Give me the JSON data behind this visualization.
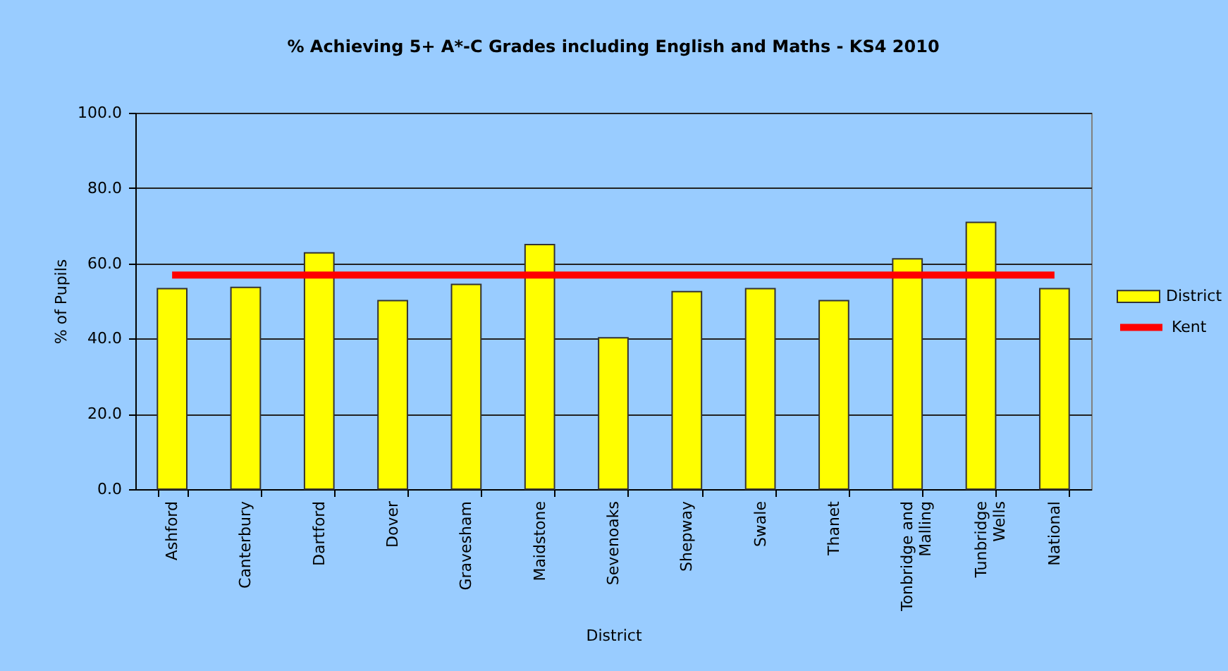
{
  "chart_data": {
    "type": "bar",
    "title": "% Achieving 5+ A*-C Grades including English and Maths - KS4 2010",
    "xlabel": "District",
    "ylabel": "% of Pupils",
    "categories": [
      "Ashford",
      "Canterbury",
      "Dartford",
      "Dover",
      "Gravesham",
      "Maidstone",
      "Sevenoaks",
      "Shepway",
      "Swale",
      "Thanet",
      "Tonbridge and Malling",
      "Tunbridge Wells",
      "National"
    ],
    "series": [
      {
        "name": "District",
        "color": "#ffff00",
        "values": [
          53.3,
          53.6,
          62.8,
          50.1,
          54.4,
          65.0,
          40.2,
          52.5,
          53.3,
          50.1,
          61.2,
          70.9,
          53.3
        ]
      },
      {
        "name": "Kent",
        "type": "line",
        "color": "#ff0000",
        "values": [
          56.9,
          56.9,
          56.9,
          56.9,
          56.9,
          56.9,
          56.9,
          56.9,
          56.9,
          56.9,
          56.9,
          56.9,
          56.9
        ]
      }
    ],
    "ylim": [
      0,
      100
    ],
    "yticks": [
      {
        "value": 0,
        "label": "0.0"
      },
      {
        "value": 20,
        "label": "20.0"
      },
      {
        "value": 40,
        "label": "40.0"
      },
      {
        "value": 60,
        "label": "60.0"
      },
      {
        "value": 80,
        "label": "80.0"
      },
      {
        "value": 100,
        "label": "100.0"
      }
    ],
    "grid": "y",
    "legend": "right"
  }
}
